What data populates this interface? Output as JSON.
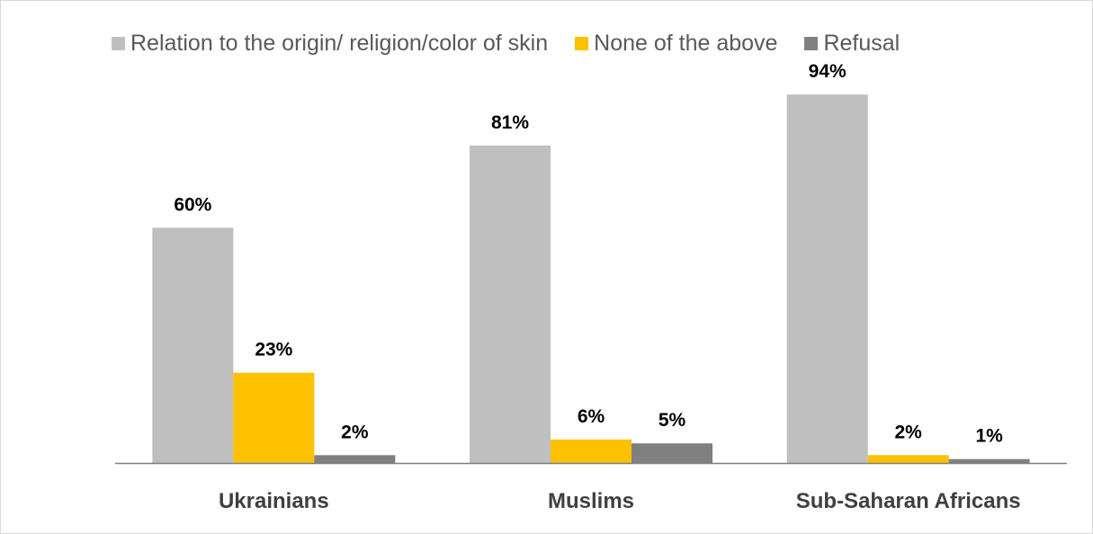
{
  "chart_data": {
    "type": "bar",
    "categories": [
      "Ukrainians",
      "Muslims",
      "Sub-Saharan Africans"
    ],
    "series": [
      {
        "name": "Relation to the origin/ religion/color of skin",
        "color": "#bfbfbf",
        "values": [
          60,
          81,
          94
        ],
        "labels": [
          "60%",
          "81%",
          "94%"
        ]
      },
      {
        "name": "None of the above",
        "color": "#ffc000",
        "values": [
          23,
          6,
          2
        ],
        "labels": [
          "23%",
          "6%",
          "2%"
        ]
      },
      {
        "name": "Refusal",
        "color": "#808080",
        "values": [
          2,
          5,
          1
        ],
        "labels": [
          "2%",
          "5%",
          "1%"
        ]
      }
    ],
    "ylim": [
      0,
      100
    ],
    "grid": false,
    "legend": "top",
    "axis_color": "#7f7f7f"
  }
}
